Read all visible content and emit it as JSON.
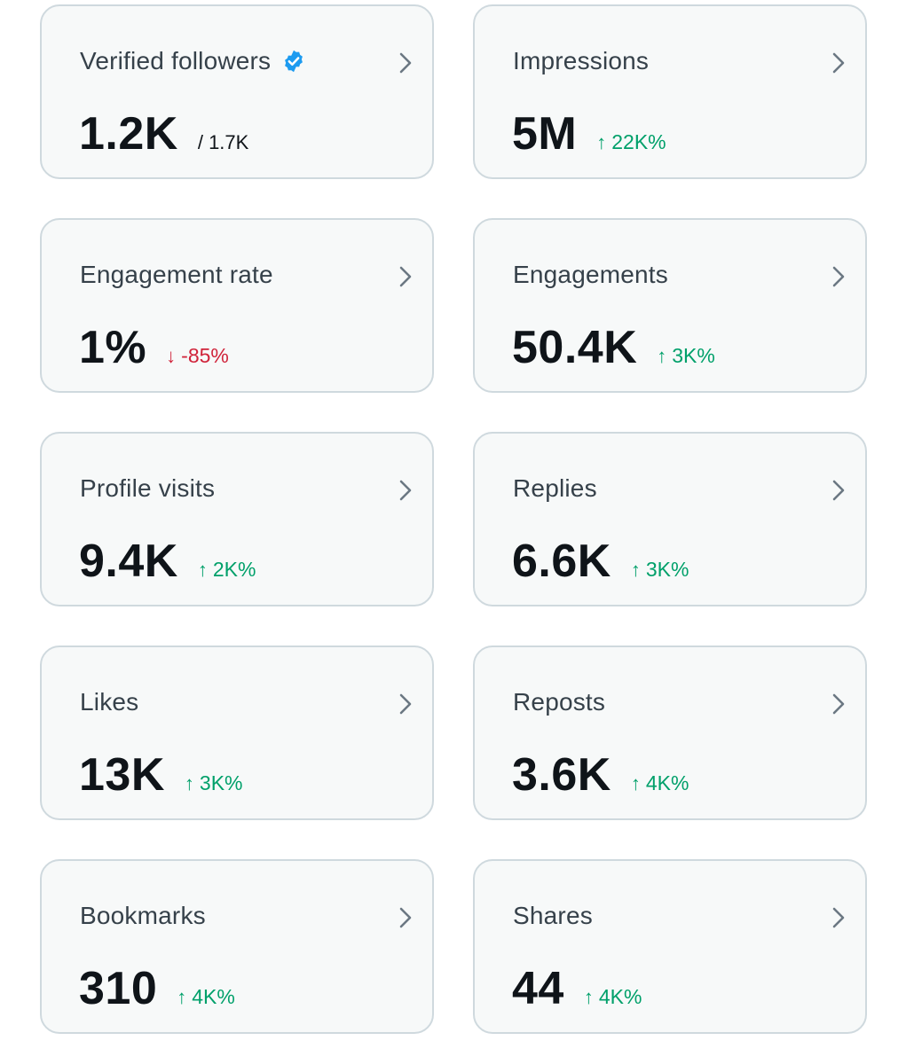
{
  "colors": {
    "card_bg": "#f7f9f9",
    "card_border": "#cfd9de",
    "up": "#00a06a",
    "down": "#d0233a",
    "verified": "#1d9bf0"
  },
  "cards": [
    {
      "label": "Verified followers",
      "value": "1.2K",
      "sub": "/ 1.7K",
      "icon": "verified-badge-icon"
    },
    {
      "label": "Impressions",
      "value": "5M",
      "arrow": "↑",
      "change": "22K%",
      "direction": "up"
    },
    {
      "label": "Engagement rate",
      "value": "1%",
      "arrow": "↓",
      "change": "-85%",
      "direction": "down"
    },
    {
      "label": "Engagements",
      "value": "50.4K",
      "arrow": "↑",
      "change": "3K%",
      "direction": "up"
    },
    {
      "label": "Profile visits",
      "value": "9.4K",
      "arrow": "↑",
      "change": "2K%",
      "direction": "up"
    },
    {
      "label": "Replies",
      "value": "6.6K",
      "arrow": "↑",
      "change": "3K%",
      "direction": "up"
    },
    {
      "label": "Likes",
      "value": "13K",
      "arrow": "↑",
      "change": "3K%",
      "direction": "up"
    },
    {
      "label": "Reposts",
      "value": "3.6K",
      "arrow": "↑",
      "change": "4K%",
      "direction": "up"
    },
    {
      "label": "Bookmarks",
      "value": "310",
      "arrow": "↑",
      "change": "4K%",
      "direction": "up"
    },
    {
      "label": "Shares",
      "value": "44",
      "arrow": "↑",
      "change": "4K%",
      "direction": "up"
    }
  ]
}
